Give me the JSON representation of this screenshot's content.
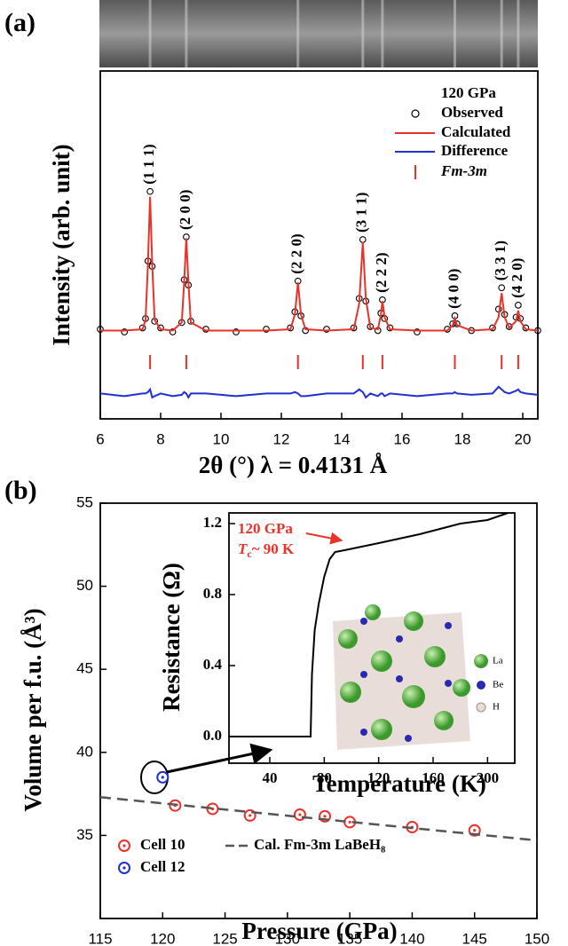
{
  "chart_data": [
    {
      "type": "line",
      "panel": "(a)",
      "xlabel": "2θ (°) λ = 0.4131 Å",
      "ylabel": "Intensity (arb. unit)",
      "legend_title": "120 GPa",
      "xlim": [
        6,
        20.5
      ],
      "xticks": [
        6,
        8,
        10,
        12,
        14,
        16,
        18,
        20
      ],
      "ylim": [
        -3.3,
        9.7
      ],
      "x": [
        6.0,
        6.8,
        7.4,
        7.5,
        7.58,
        7.65,
        7.72,
        7.8,
        8.0,
        8.4,
        8.7,
        8.78,
        8.85,
        8.92,
        9.0,
        9.5,
        10.5,
        11.5,
        12.3,
        12.45,
        12.55,
        12.65,
        12.8,
        13.5,
        14.4,
        14.58,
        14.7,
        14.8,
        14.95,
        15.2,
        15.3,
        15.35,
        15.42,
        15.6,
        16.5,
        17.5,
        17.68,
        17.75,
        17.82,
        18.3,
        19.0,
        19.2,
        19.3,
        19.4,
        19.55,
        19.78,
        19.85,
        19.92,
        20.1,
        20.5
      ],
      "series": [
        {
          "name": "Observed",
          "color": "#000000",
          "mode": "markers",
          "values": [
            0.05,
            -0.05,
            0.1,
            0.45,
            2.6,
            5.2,
            2.4,
            0.35,
            0.1,
            -0.05,
            0.3,
            1.9,
            3.5,
            1.7,
            0.35,
            0.05,
            -0.05,
            0.05,
            0.1,
            0.7,
            1.85,
            0.55,
            0.0,
            0.05,
            0.1,
            1.2,
            3.4,
            1.1,
            0.15,
            0.0,
            0.65,
            1.15,
            0.45,
            0.1,
            -0.05,
            0.05,
            0.25,
            0.55,
            0.25,
            0.0,
            0.1,
            0.8,
            1.6,
            0.6,
            0.15,
            0.5,
            0.95,
            0.45,
            0.1,
            0.0
          ]
        },
        {
          "name": "Calculated",
          "color": "#e8322a",
          "mode": "lines",
          "values": [
            0,
            0,
            0.05,
            0.4,
            2.5,
            5.0,
            2.5,
            0.4,
            0.05,
            0,
            0.3,
            1.8,
            3.45,
            1.8,
            0.3,
            0,
            0,
            0,
            0.05,
            0.6,
            1.8,
            0.6,
            0.05,
            0,
            0.05,
            1.0,
            3.3,
            1.2,
            0.1,
            0.05,
            0.6,
            1.1,
            0.5,
            0.05,
            0,
            0,
            0.2,
            0.45,
            0.2,
            0,
            0.05,
            0.5,
            1.4,
            0.5,
            0.1,
            0.35,
            0.75,
            0.35,
            0.05,
            0
          ]
        },
        {
          "name": "Difference",
          "color": "#1f2fd0",
          "mode": "lines",
          "values": [
            -2.35,
            -2.45,
            -2.35,
            -2.35,
            -2.3,
            -2.2,
            -2.5,
            -2.45,
            -2.35,
            -2.45,
            -2.4,
            -2.3,
            -2.35,
            -2.5,
            -2.35,
            -2.35,
            -2.45,
            -2.35,
            -2.35,
            -2.3,
            -2.35,
            -2.45,
            -2.45,
            -2.35,
            -2.35,
            -2.2,
            -2.3,
            -2.5,
            -2.35,
            -2.45,
            -2.35,
            -2.35,
            -2.45,
            -2.35,
            -2.45,
            -2.35,
            -2.35,
            -2.3,
            -2.35,
            -2.4,
            -2.35,
            -2.1,
            -2.2,
            -2.3,
            -2.35,
            -2.25,
            -2.2,
            -2.3,
            -2.35,
            -2.4
          ]
        }
      ],
      "reflections": {
        "name": "Fm-3m",
        "color": "#e8322a",
        "positions": [
          7.65,
          8.85,
          12.55,
          14.7,
          15.35,
          17.75,
          19.3,
          19.85
        ],
        "labels": [
          "(1 1 1)",
          "(2 0 0)",
          "(2 2 0)",
          "(3 1 1)",
          "(2 2 2)",
          "(4 0 0)",
          "(3 3 1)",
          "(4 2 0)"
        ]
      }
    },
    {
      "type": "scatter",
      "panel": "(b)",
      "xlabel": "Pressure (GPa)",
      "ylabel": "Volume per f.u. (Å³)",
      "xlim": [
        115,
        150
      ],
      "xticks": [
        115,
        120,
        125,
        130,
        135,
        140,
        145,
        150
      ],
      "ylim": [
        30,
        55
      ],
      "yticks": [
        35,
        40,
        45,
        50,
        55
      ],
      "series": [
        {
          "name": "Cell 10",
          "color": "#e8322a",
          "mode": "markers",
          "x": [
            121,
            124,
            127,
            131,
            133,
            135,
            140,
            145
          ],
          "values": [
            36.8,
            36.6,
            36.2,
            36.25,
            36.15,
            35.8,
            35.5,
            35.3
          ]
        },
        {
          "name": "Cell 12",
          "color": "#1f2fd0",
          "mode": "markers",
          "x": [
            120
          ],
          "values": [
            38.5
          ]
        },
        {
          "name": "Cal. Fm-3m LaBeH₈",
          "color": "#555555",
          "mode": "lines",
          "dash": true,
          "x": [
            115,
            150
          ],
          "values": [
            37.3,
            34.7
          ]
        }
      ]
    },
    {
      "type": "line",
      "xlabel": "Temperature (K)",
      "ylabel": "Resistance (Ω)",
      "xlim": [
        10,
        220
      ],
      "xticks": [
        40,
        80,
        120,
        160,
        200
      ],
      "ylim": [
        -0.15,
        1.26
      ],
      "yticks": [
        {
          "value": 0,
          "label": "0.0"
        },
        0.4,
        0.8,
        1.2
      ],
      "annotation": {
        "pressure": "120 GPa",
        "symbol": "T",
        "subscript": "c",
        "text": "~ 90 K"
      },
      "structure_legend": [
        "La",
        "Be",
        "H"
      ],
      "series": [
        {
          "color": "#000000",
          "mode": "lines",
          "x": [
            10,
            70,
            71,
            73,
            76,
            80,
            84,
            88,
            95,
            120,
            150,
            180,
            200,
            215
          ],
          "values": [
            0,
            0,
            0.35,
            0.6,
            0.75,
            0.9,
            1.0,
            1.04,
            1.05,
            1.09,
            1.14,
            1.2,
            1.22,
            1.26
          ]
        }
      ]
    }
  ]
}
